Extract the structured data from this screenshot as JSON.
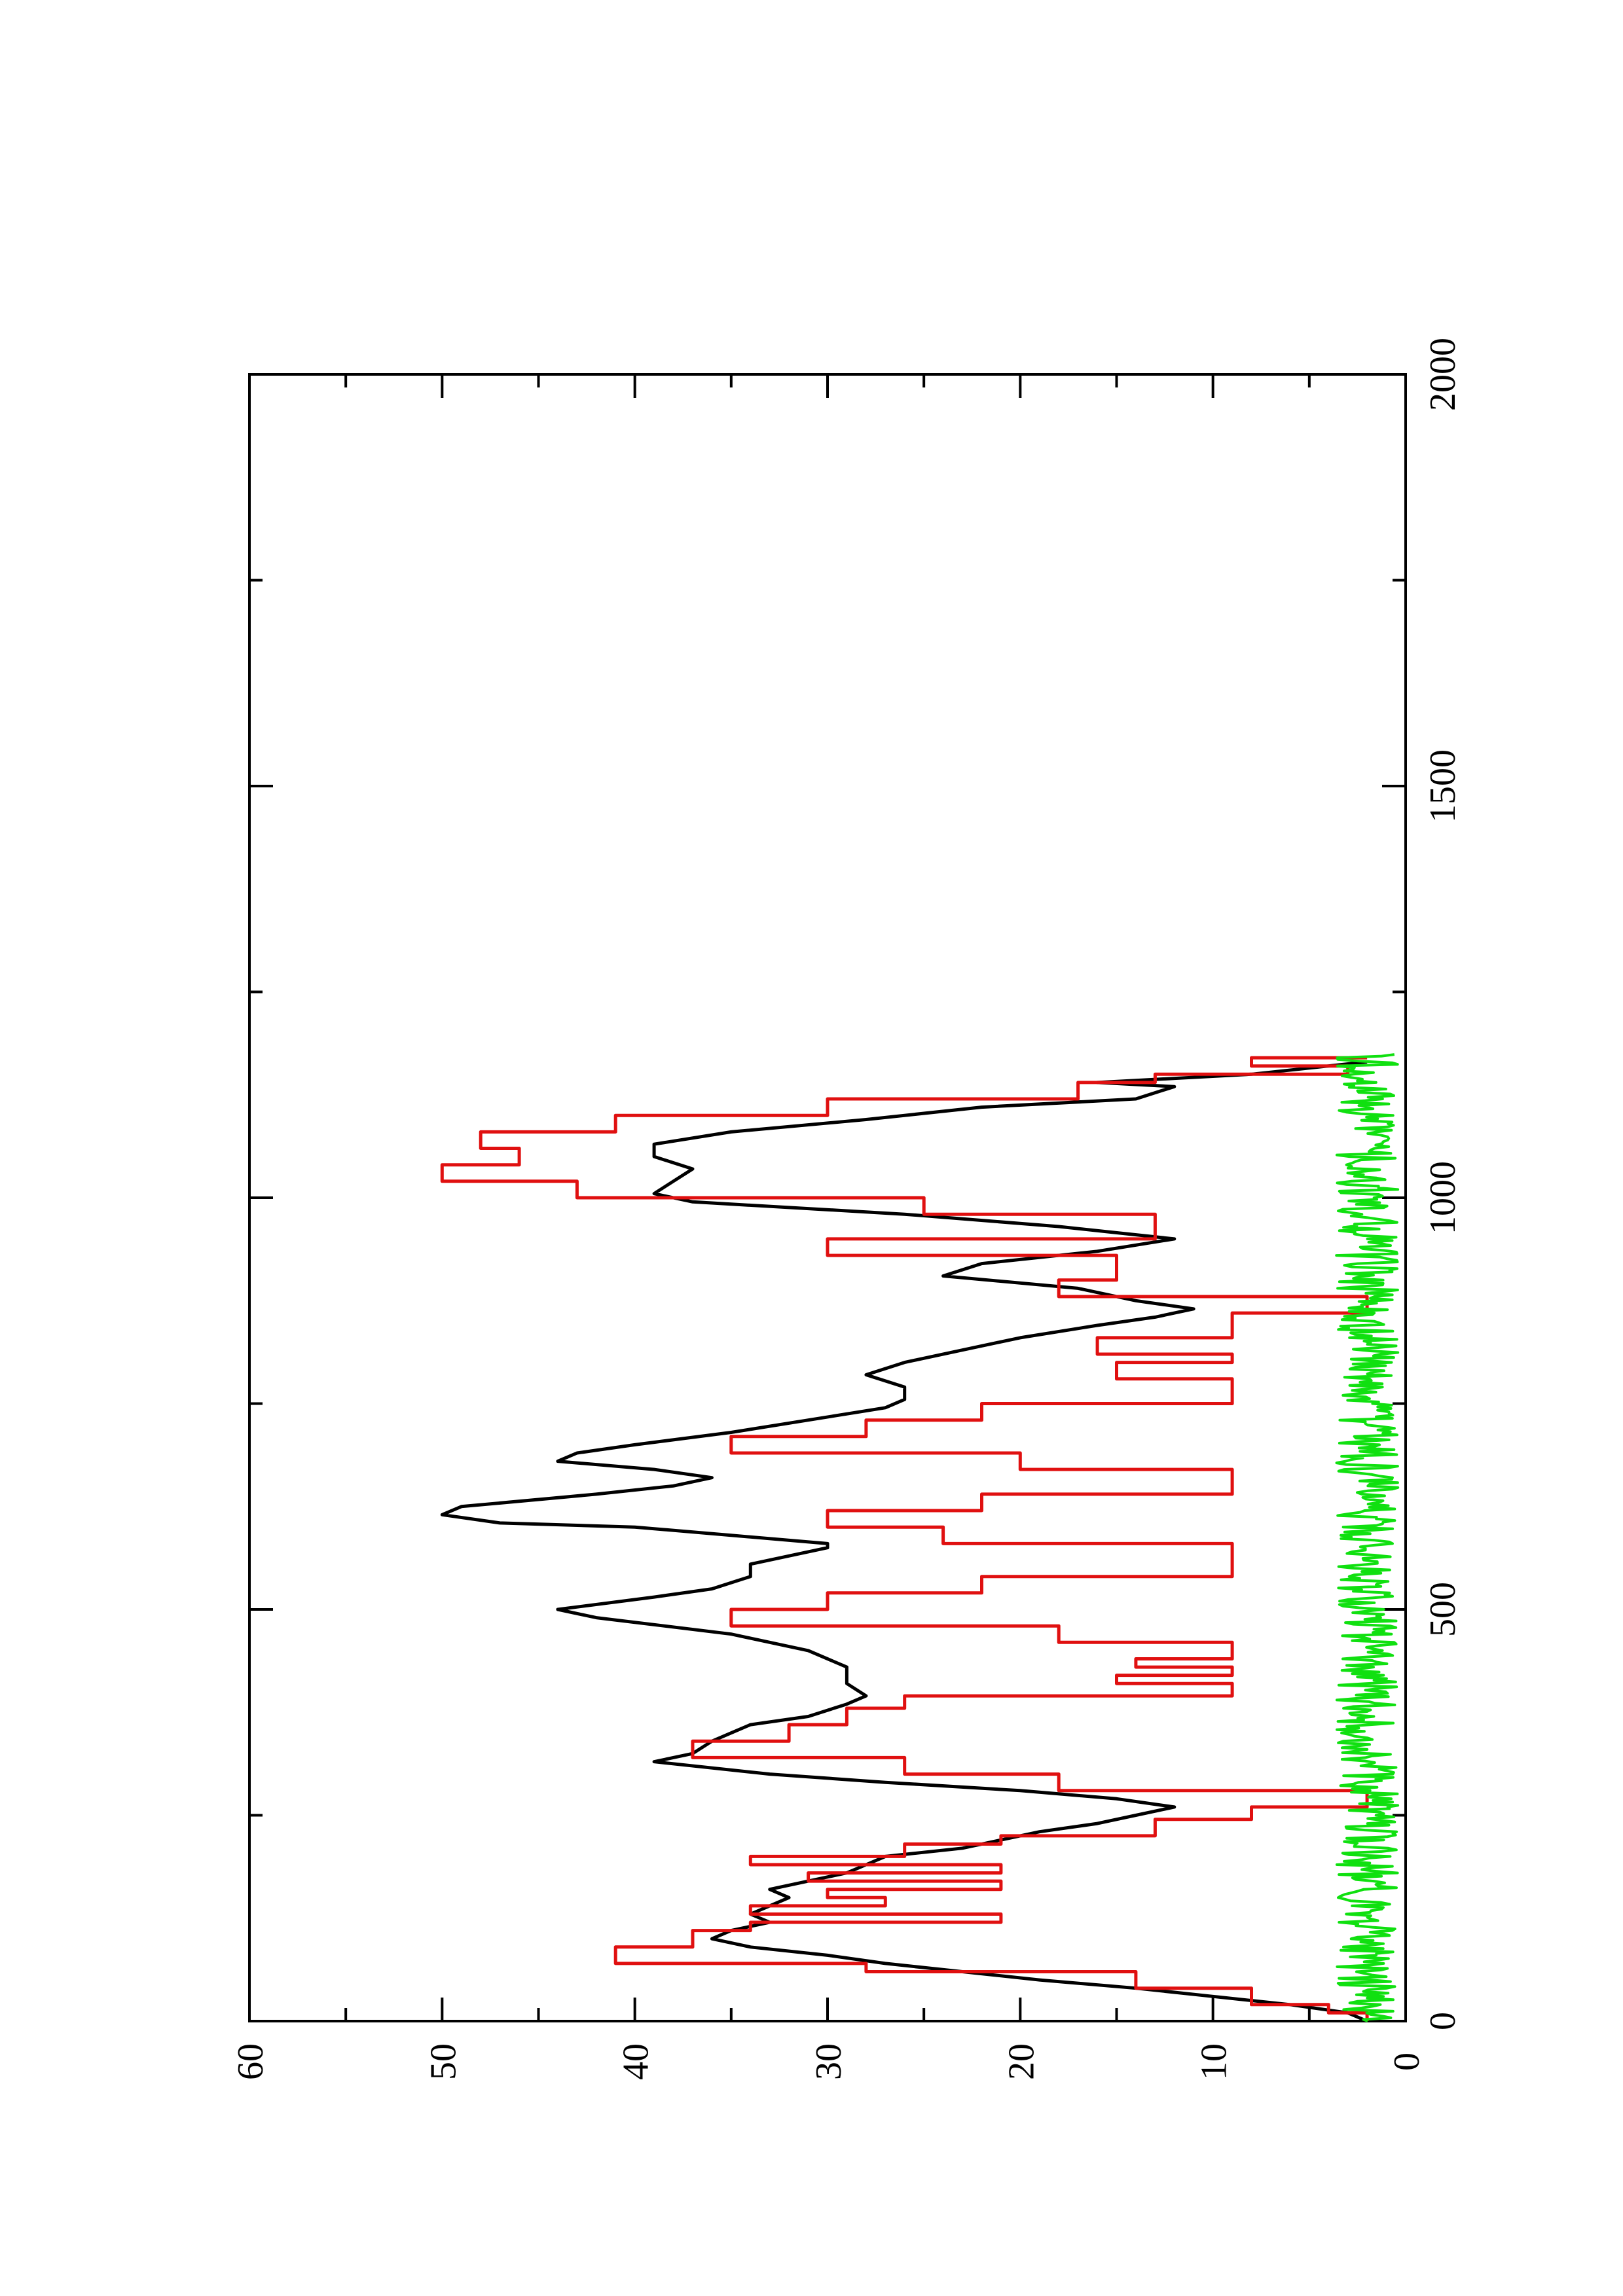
{
  "chart_data": {
    "type": "line",
    "title": "",
    "xlabel": "",
    "ylabel": "",
    "orientation": "rotated-90-counterclockwise",
    "xlim": [
      0,
      2000
    ],
    "ylim": [
      0,
      60
    ],
    "x_ticks": [
      "0",
      "500",
      "1000",
      "1500",
      "2000"
    ],
    "y_ticks": [
      "0",
      "10",
      "20",
      "30",
      "40",
      "50",
      "60"
    ],
    "x_minor_step": 250,
    "y_minor_step": 5,
    "grid": false,
    "legend": "none",
    "series": [
      {
        "color": "#000000",
        "style": "line",
        "points": [
          [
            0,
            2
          ],
          [
            10,
            3
          ],
          [
            20,
            6
          ],
          [
            30,
            10
          ],
          [
            40,
            14
          ],
          [
            50,
            19
          ],
          [
            60,
            23
          ],
          [
            70,
            27
          ],
          [
            80,
            30
          ],
          [
            90,
            34
          ],
          [
            100,
            36
          ],
          [
            110,
            35
          ],
          [
            120,
            33
          ],
          [
            130,
            34
          ],
          [
            140,
            33
          ],
          [
            150,
            32
          ],
          [
            160,
            33
          ],
          [
            170,
            31
          ],
          [
            180,
            29
          ],
          [
            190,
            28
          ],
          [
            200,
            27
          ],
          [
            210,
            23
          ],
          [
            220,
            21
          ],
          [
            230,
            19
          ],
          [
            240,
            16
          ],
          [
            250,
            14
          ],
          [
            260,
            12
          ],
          [
            270,
            15
          ],
          [
            280,
            20
          ],
          [
            290,
            27
          ],
          [
            300,
            33
          ],
          [
            315,
            39
          ],
          [
            325,
            37
          ],
          [
            340,
            36
          ],
          [
            350,
            35
          ],
          [
            360,
            34
          ],
          [
            370,
            31
          ],
          [
            385,
            29
          ],
          [
            395,
            28
          ],
          [
            410,
            29
          ],
          [
            430,
            29
          ],
          [
            450,
            31
          ],
          [
            470,
            35
          ],
          [
            490,
            42
          ],
          [
            500,
            44
          ],
          [
            515,
            39
          ],
          [
            525,
            36
          ],
          [
            540,
            34
          ],
          [
            555,
            34
          ],
          [
            575,
            30
          ],
          [
            580,
            30
          ],
          [
            590,
            35
          ],
          [
            600,
            40
          ],
          [
            605,
            47
          ],
          [
            615,
            50
          ],
          [
            625,
            49
          ],
          [
            640,
            42
          ],
          [
            650,
            38
          ],
          [
            660,
            36
          ],
          [
            670,
            39
          ],
          [
            680,
            44
          ],
          [
            690,
            43
          ],
          [
            700,
            40
          ],
          [
            715,
            35
          ],
          [
            730,
            31
          ],
          [
            745,
            27
          ],
          [
            755,
            26
          ],
          [
            770,
            26
          ],
          [
            785,
            28
          ],
          [
            800,
            26
          ],
          [
            815,
            23
          ],
          [
            830,
            20
          ],
          [
            845,
            16
          ],
          [
            855,
            13
          ],
          [
            865,
            11
          ],
          [
            875,
            14
          ],
          [
            890,
            17
          ],
          [
            905,
            24
          ],
          [
            920,
            22
          ],
          [
            935,
            16
          ],
          [
            950,
            12
          ],
          [
            965,
            18
          ],
          [
            980,
            26
          ],
          [
            995,
            37
          ],
          [
            1005,
            39
          ],
          [
            1020,
            38
          ],
          [
            1035,
            37
          ],
          [
            1050,
            39
          ],
          [
            1065,
            39
          ],
          [
            1080,
            35
          ],
          [
            1095,
            28
          ],
          [
            1110,
            22
          ],
          [
            1120,
            14
          ],
          [
            1135,
            12
          ],
          [
            1140,
            16
          ],
          [
            1150,
            8
          ],
          [
            1160,
            4
          ],
          [
            1165,
            2
          ]
        ]
      },
      {
        "color": "#e01010",
        "style": "step",
        "points": [
          [
            0,
            2
          ],
          [
            10,
            4
          ],
          [
            20,
            8
          ],
          [
            40,
            14
          ],
          [
            60,
            28
          ],
          [
            70,
            41
          ],
          [
            90,
            37
          ],
          [
            110,
            34
          ],
          [
            120,
            21
          ],
          [
            130,
            34
          ],
          [
            140,
            27
          ],
          [
            150,
            30
          ],
          [
            160,
            21
          ],
          [
            170,
            31
          ],
          [
            180,
            21
          ],
          [
            190,
            34
          ],
          [
            200,
            26
          ],
          [
            215,
            21
          ],
          [
            225,
            13
          ],
          [
            245,
            8
          ],
          [
            260,
            2
          ],
          [
            280,
            18
          ],
          [
            300,
            26
          ],
          [
            320,
            37
          ],
          [
            340,
            32
          ],
          [
            360,
            29
          ],
          [
            380,
            26
          ],
          [
            395,
            9
          ],
          [
            410,
            15
          ],
          [
            420,
            9
          ],
          [
            430,
            14
          ],
          [
            440,
            9
          ],
          [
            460,
            18
          ],
          [
            480,
            35
          ],
          [
            500,
            30
          ],
          [
            520,
            22
          ],
          [
            540,
            9
          ],
          [
            580,
            24
          ],
          [
            600,
            30
          ],
          [
            620,
            22
          ],
          [
            640,
            9
          ],
          [
            670,
            20
          ],
          [
            690,
            35
          ],
          [
            710,
            28
          ],
          [
            730,
            22
          ],
          [
            750,
            9
          ],
          [
            780,
            15
          ],
          [
            800,
            9
          ],
          [
            810,
            16
          ],
          [
            830,
            9
          ],
          [
            860,
            2
          ],
          [
            880,
            18
          ],
          [
            900,
            15
          ],
          [
            930,
            30
          ],
          [
            950,
            13
          ],
          [
            980,
            25
          ],
          [
            1000,
            43
          ],
          [
            1020,
            50
          ],
          [
            1040,
            46
          ],
          [
            1060,
            48
          ],
          [
            1080,
            41
          ],
          [
            1100,
            30
          ],
          [
            1120,
            17
          ],
          [
            1140,
            13
          ],
          [
            1150,
            3
          ],
          [
            1160,
            8
          ],
          [
            1170,
            2
          ]
        ]
      },
      {
        "color": "#10e010",
        "style": "noise",
        "x_range": [
          0,
          1175
        ],
        "center": 2,
        "spread": 1.6
      }
    ]
  }
}
